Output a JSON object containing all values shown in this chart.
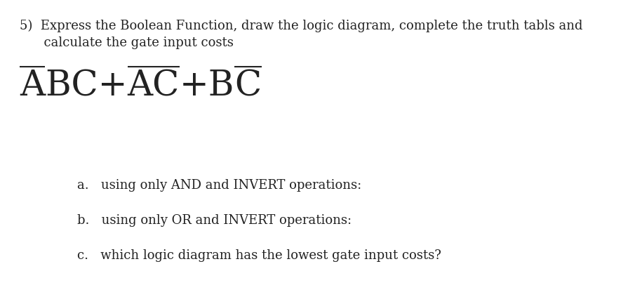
{
  "bg_color": "#ffffff",
  "text_color": "#222222",
  "title_line1": "5)  Express the Boolean Function, draw the logic diagram, complete the truth tabls and",
  "title_line2": "      calculate the gate input costs",
  "title_fontsize": 13.0,
  "formula_fontsize": 36,
  "sub_fontsize": 13.0,
  "sub_a": "a.   using only AND and INVERT operations:",
  "sub_b": "b.   using only OR and INVERT operations:",
  "sub_c": "c.   which logic diagram has the lowest gate input costs?"
}
